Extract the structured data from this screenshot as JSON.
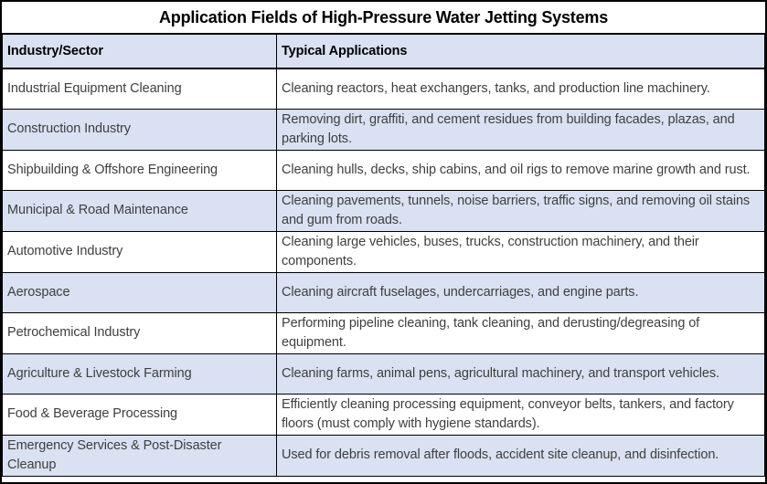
{
  "title": "Application Fields of High-Pressure Water Jetting Systems",
  "colors": {
    "band_fill": "#d9e1f2",
    "header_fill": "#d9e1f2",
    "border": "#000000",
    "body_text": "#3f3f3f",
    "title_text": "#000000"
  },
  "table": {
    "columns": [
      "Industry/Sector",
      "Typical Applications"
    ],
    "rows": [
      {
        "sector": "Industrial Equipment Cleaning",
        "application": "Cleaning reactors, heat exchangers, tanks, and production line machinery."
      },
      {
        "sector": "Construction Industry",
        "application": "Removing dirt, graffiti, and cement residues from building facades, plazas, and parking lots."
      },
      {
        "sector": "Shipbuilding & Offshore Engineering",
        "application": "Cleaning hulls, decks, ship cabins, and oil rigs to remove marine growth and rust."
      },
      {
        "sector": "Municipal & Road Maintenance",
        "application": "Cleaning pavements, tunnels, noise barriers, traffic signs, and removing oil stains and gum from roads."
      },
      {
        "sector": "Automotive Industry",
        "application": "Cleaning large vehicles, buses, trucks, construction machinery, and their components."
      },
      {
        "sector": "Aerospace",
        "application": "Cleaning aircraft fuselages, undercarriages, and engine parts."
      },
      {
        "sector": "Petrochemical Industry",
        "application": "Performing pipeline cleaning, tank cleaning, and derusting/degreasing of equipment."
      },
      {
        "sector": "Agriculture & Livestock Farming",
        "application": "Cleaning farms, animal pens, agricultural machinery, and transport vehicles."
      },
      {
        "sector": "Food & Beverage Processing",
        "application": "Efficiently cleaning processing equipment, conveyor belts, tankers, and factory floors (must comply with hygiene standards)."
      },
      {
        "sector": "Emergency Services & Post-Disaster Cleanup",
        "application": "Used for debris removal after floods, accident site cleanup, and disinfection."
      }
    ]
  }
}
